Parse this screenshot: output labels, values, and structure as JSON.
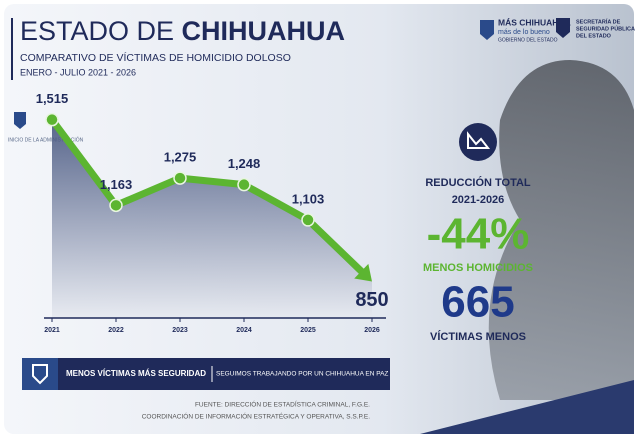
{
  "chart_data": {
    "type": "line",
    "title_light": "ESTADO DE",
    "title_bold": "CHIHUAHUA",
    "subtitle": "COMPARATIVO DE VÍCTIMAS DE HOMICIDIO DOLOSO",
    "period": "ENERO - JULIO 2021 - 2026",
    "annotation": "INICIO DE LA ADMINISTRACIÓN",
    "categories": [
      "2021",
      "2022",
      "2023",
      "2024",
      "2025",
      "2026"
    ],
    "values": [
      1515,
      1163,
      1275,
      1248,
      1103,
      850
    ],
    "value_labels": [
      "1,515",
      "1,163",
      "1,275",
      "1,248",
      "1,103",
      "850"
    ],
    "color": "#5cb531",
    "ylim": [
      700,
      1600
    ]
  },
  "logos": {
    "brand": "MÁS CHIHUAHUA",
    "tagline": "más de lo bueno",
    "government": "GOBIERNO DEL ESTADO",
    "secretariat": [
      "SECRETARÍA DE",
      "SEGURIDAD PÚBLICA",
      "DEL ESTADO"
    ]
  },
  "summary": {
    "heading": "REDUCCIÓN TOTAL",
    "range": "2021-2026",
    "percent": "-44%",
    "percent_caption": "MENOS HOMICIDIOS",
    "count": "665",
    "count_caption": "VÍCTIMAS MENOS"
  },
  "banner": {
    "slogan": "MENOS VÍCTIMAS MÁS SEGURIDAD",
    "message": "SEGUIMOS TRABAJANDO POR UN CHIHUAHUA EN PAZ"
  },
  "footer": [
    "FUENTE: DIRECCIÓN DE ESTADÍSTICA CRIMINAL, F.G.E.",
    "COORDINACIÓN DE INFORMACIÓN ESTRATÉGICA Y OPERATIVA, S.S.P.E."
  ]
}
